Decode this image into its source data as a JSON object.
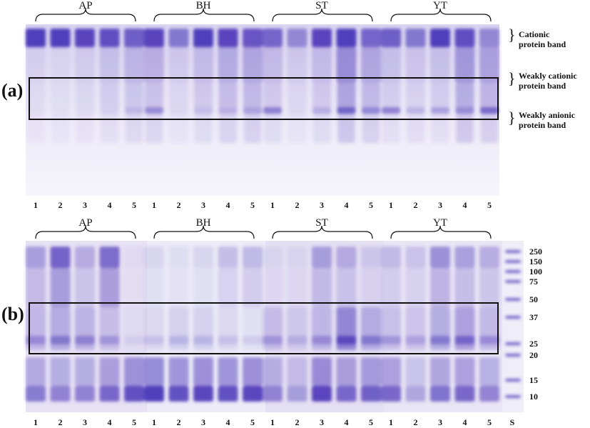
{
  "panels": [
    {
      "label": "(a)",
      "groups": [
        "AP",
        "BH",
        "ST",
        "YT"
      ],
      "lanes": [
        "1",
        "2",
        "3",
        "4",
        "5",
        "1",
        "2",
        "3",
        "4",
        "5",
        "1",
        "2",
        "3",
        "4",
        "5",
        "1",
        "2",
        "3",
        "4",
        "5"
      ],
      "band_annotations": [
        {
          "line1": "Cationic",
          "line2": "protein band"
        },
        {
          "line1": "Weakly cationic",
          "line2": "protein band"
        },
        {
          "line1": "Weakly anionic",
          "line2": "protein band"
        }
      ]
    },
    {
      "label": "(b)",
      "groups": [
        "AP",
        "BH",
        "ST",
        "YT"
      ],
      "lanes": [
        "1",
        "2",
        "3",
        "4",
        "5",
        "1",
        "2",
        "3",
        "4",
        "5",
        "1",
        "2",
        "3",
        "4",
        "5",
        "1",
        "2",
        "3",
        "4",
        "5",
        "S"
      ],
      "markers": [
        "250",
        "150",
        "100",
        "75",
        "50",
        "37",
        "25",
        "20",
        "15",
        "10"
      ]
    }
  ],
  "colors": {
    "gel_stain": "#4a35b8",
    "gel_background": "#e9e6f6",
    "frame": "#111111"
  }
}
